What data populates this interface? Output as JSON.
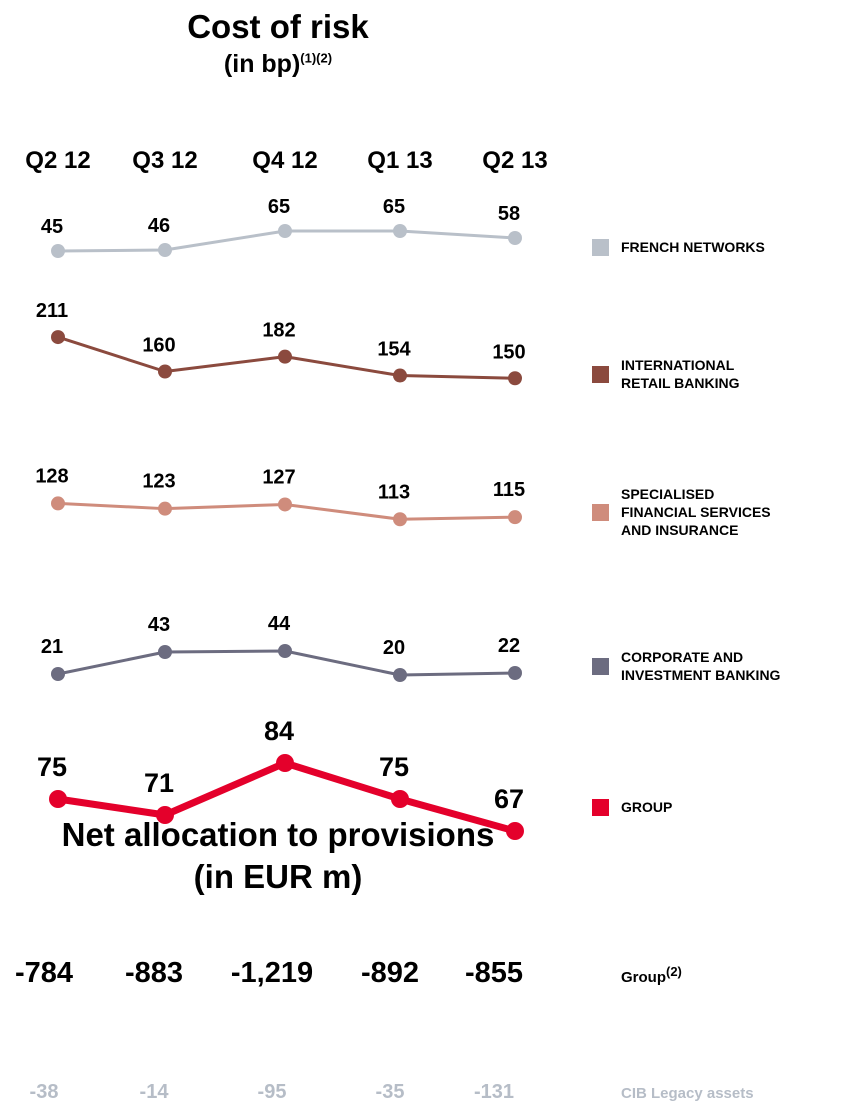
{
  "title": "Cost of risk",
  "subtitle_main": "(in bp)",
  "subtitle_sup": "(1)(2)",
  "chart_data": {
    "type": "line",
    "categories": [
      "Q2 12",
      "Q3 12",
      "Q4 12",
      "Q1 13",
      "Q2 13"
    ],
    "unit": "bp",
    "series": [
      {
        "name": "FRENCH NETWORKS",
        "values": [
          45,
          46,
          65,
          65,
          58
        ],
        "color": "#b9c0c9"
      },
      {
        "name": "INTERNATIONAL RETAIL BANKING",
        "values": [
          211,
          160,
          182,
          154,
          150
        ],
        "color": "#8b4a3e"
      },
      {
        "name": "SPECIALISED FINANCIAL SERVICES AND INSURANCE",
        "values": [
          128,
          123,
          127,
          113,
          115
        ],
        "color": "#cf8c7c"
      },
      {
        "name": "CORPORATE AND INVESTMENT BANKING",
        "values": [
          21,
          43,
          44,
          20,
          22
        ],
        "color": "#6c6c80"
      },
      {
        "name": "GROUP",
        "values": [
          75,
          71,
          84,
          75,
          67
        ],
        "color": "#e4002b"
      }
    ]
  },
  "bottom": {
    "title": "Net allocation to provisions",
    "subtitle": "(in EUR m)",
    "group_values": [
      "-784",
      "-883",
      "-1,219",
      "-892",
      "-855"
    ],
    "group_label": "Group",
    "group_label_sup": "(2)",
    "cib_values": [
      "-38",
      "-14",
      "-95",
      "-35",
      "-131"
    ],
    "cib_label": "CIB Legacy assets",
    "cib_color": "#b6bdc7"
  }
}
